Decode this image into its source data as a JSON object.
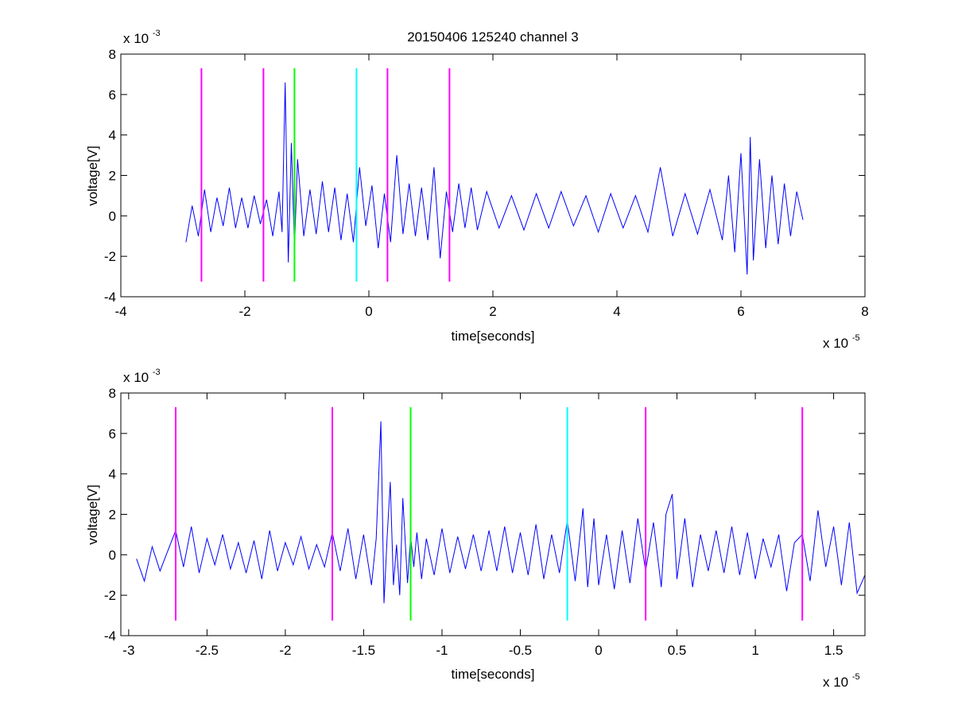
{
  "figure": {
    "title": "20150406 125240 channel 3",
    "background": "#ffffff"
  },
  "chart_data": [
    {
      "type": "line",
      "title": "20150406 125240 channel 3",
      "xlabel": "time[seconds]",
      "ylabel": "voltage[V]",
      "x_exponent_label": "x 10",
      "x_exponent": "-5",
      "y_exponent_label": "x 10",
      "y_exponent": "-3",
      "xlim": [
        -4,
        8
      ],
      "ylim": [
        -4,
        8
      ],
      "xticks": [
        -4,
        -2,
        0,
        2,
        4,
        6,
        8
      ],
      "xtick_labels": [
        "-4",
        "-2",
        "0",
        "2",
        "4",
        "6",
        "8"
      ],
      "yticks": [
        -4,
        -2,
        0,
        2,
        4,
        6,
        8
      ],
      "ytick_labels": [
        "-4",
        "-2",
        "0",
        "2",
        "4",
        "6",
        "8"
      ],
      "grid": false,
      "series": [
        {
          "color": "#0000ff",
          "x": [
            -2.95,
            -2.85,
            -2.75,
            -2.65,
            -2.55,
            -2.45,
            -2.35,
            -2.25,
            -2.15,
            -2.05,
            -1.95,
            -1.85,
            -1.75,
            -1.65,
            -1.55,
            -1.45,
            -1.4,
            -1.35,
            -1.3,
            -1.25,
            -1.2,
            -1.15,
            -1.05,
            -0.95,
            -0.85,
            -0.75,
            -0.65,
            -0.55,
            -0.45,
            -0.35,
            -0.25,
            -0.15,
            -0.05,
            0.05,
            0.15,
            0.25,
            0.35,
            0.45,
            0.55,
            0.65,
            0.75,
            0.85,
            0.95,
            1.05,
            1.15,
            1.25,
            1.35,
            1.45,
            1.55,
            1.65,
            1.75,
            1.9,
            2.1,
            2.3,
            2.5,
            2.7,
            2.9,
            3.1,
            3.3,
            3.5,
            3.7,
            3.9,
            4.1,
            4.3,
            4.5,
            4.7,
            4.9,
            5.1,
            5.3,
            5.5,
            5.7,
            5.8,
            5.9,
            6.0,
            6.1,
            6.15,
            6.2,
            6.3,
            6.4,
            6.5,
            6.6,
            6.7,
            6.8,
            6.9,
            7.0
          ],
          "y": [
            -1.3,
            0.5,
            -1.0,
            1.3,
            -0.8,
            0.9,
            -0.5,
            1.4,
            -0.6,
            0.9,
            -0.6,
            1.0,
            -0.4,
            0.8,
            -1.0,
            1.2,
            -0.8,
            6.6,
            -2.3,
            3.6,
            -1.6,
            2.8,
            -1.0,
            1.3,
            -0.9,
            1.7,
            -0.8,
            1.4,
            -1.2,
            1.1,
            -1.3,
            2.4,
            -0.5,
            1.5,
            -1.6,
            1.1,
            -1.3,
            3.0,
            -0.9,
            1.6,
            -1.0,
            1.4,
            -1.2,
            2.4,
            -2.1,
            1.2,
            -0.8,
            1.6,
            -0.6,
            1.4,
            -0.7,
            1.2,
            -0.6,
            1.0,
            -0.7,
            1.1,
            -0.6,
            1.2,
            -0.5,
            1.0,
            -0.8,
            1.1,
            -0.6,
            1.0,
            -0.8,
            2.4,
            -1.0,
            1.1,
            -0.9,
            1.3,
            -1.2,
            2.0,
            -1.8,
            3.1,
            -2.9,
            3.9,
            -2.2,
            2.8,
            -1.6,
            2.0,
            -1.4,
            1.6,
            -1.0,
            1.2,
            -0.2
          ]
        }
      ],
      "vlines": [
        {
          "x": -2.7,
          "color": "#ff00ff"
        },
        {
          "x": -1.7,
          "color": "#ff00ff"
        },
        {
          "x": -1.2,
          "color": "#00ff00"
        },
        {
          "x": -0.2,
          "color": "#00ffff"
        },
        {
          "x": 0.3,
          "color": "#ff00ff"
        },
        {
          "x": 1.3,
          "color": "#ff00ff"
        }
      ],
      "vline_yrange": [
        -3.25,
        7.3
      ]
    },
    {
      "type": "line",
      "title": "",
      "xlabel": "time[seconds]",
      "ylabel": "voltage[V]",
      "x_exponent_label": "x 10",
      "x_exponent": "-5",
      "y_exponent_label": "x 10",
      "y_exponent": "-3",
      "xlim": [
        -3.05,
        1.7
      ],
      "ylim": [
        -4,
        8
      ],
      "xticks": [
        -3,
        -2.5,
        -2,
        -1.5,
        -1,
        -0.5,
        0,
        0.5,
        1,
        1.5
      ],
      "xtick_labels": [
        "-3",
        "-2.5",
        "-2",
        "-1.5",
        "-1",
        "-0.5",
        "0",
        "0.5",
        "1",
        "1.5"
      ],
      "yticks": [
        -4,
        -2,
        0,
        2,
        4,
        6,
        8
      ],
      "ytick_labels": [
        "-4",
        "-2",
        "0",
        "2",
        "4",
        "6",
        "8"
      ],
      "grid": false,
      "series": [
        {
          "color": "#0000ff",
          "x": [
            -2.95,
            -2.9,
            -2.85,
            -2.8,
            -2.75,
            -2.7,
            -2.65,
            -2.6,
            -2.55,
            -2.5,
            -2.45,
            -2.4,
            -2.35,
            -2.3,
            -2.25,
            -2.2,
            -2.15,
            -2.1,
            -2.05,
            -2.0,
            -1.95,
            -1.9,
            -1.85,
            -1.8,
            -1.75,
            -1.7,
            -1.65,
            -1.6,
            -1.55,
            -1.5,
            -1.45,
            -1.42,
            -1.39,
            -1.37,
            -1.35,
            -1.33,
            -1.31,
            -1.29,
            -1.27,
            -1.25,
            -1.22,
            -1.2,
            -1.18,
            -1.16,
            -1.13,
            -1.1,
            -1.05,
            -1.0,
            -0.95,
            -0.9,
            -0.85,
            -0.8,
            -0.75,
            -0.7,
            -0.65,
            -0.6,
            -0.55,
            -0.5,
            -0.45,
            -0.4,
            -0.35,
            -0.3,
            -0.25,
            -0.2,
            -0.15,
            -0.1,
            -0.07,
            -0.03,
            0.0,
            0.05,
            0.1,
            0.15,
            0.2,
            0.25,
            0.3,
            0.35,
            0.4,
            0.43,
            0.47,
            0.5,
            0.55,
            0.6,
            0.65,
            0.7,
            0.75,
            0.8,
            0.85,
            0.9,
            0.95,
            1.0,
            1.05,
            1.1,
            1.15,
            1.2,
            1.25,
            1.3,
            1.35,
            1.4,
            1.45,
            1.5,
            1.55,
            1.6,
            1.65,
            1.7
          ],
          "y": [
            -0.2,
            -1.3,
            0.4,
            -0.8,
            0.2,
            1.2,
            -0.6,
            1.4,
            -0.9,
            0.8,
            -0.5,
            1.0,
            -0.7,
            0.6,
            -0.9,
            0.7,
            -1.2,
            1.2,
            -0.8,
            0.6,
            -0.5,
            0.9,
            -0.7,
            0.5,
            -0.6,
            1.1,
            -0.8,
            1.3,
            -1.2,
            1.0,
            -1.5,
            0.8,
            6.6,
            -2.4,
            0.9,
            3.6,
            -1.5,
            0.5,
            -2.0,
            2.8,
            -1.4,
            0.9,
            -0.6,
            1.1,
            -1.2,
            0.8,
            -1.0,
            1.3,
            -0.9,
            0.9,
            -0.7,
            1.0,
            -0.8,
            1.2,
            -0.8,
            1.4,
            -0.9,
            1.1,
            -1.0,
            1.5,
            -1.2,
            1.0,
            -0.9,
            1.7,
            -1.3,
            2.3,
            -1.6,
            1.8,
            -1.5,
            1.0,
            -1.7,
            1.2,
            -1.4,
            1.8,
            -0.8,
            1.6,
            -1.6,
            2.0,
            3.0,
            -1.2,
            1.8,
            -1.6,
            1.0,
            -0.8,
            1.2,
            -0.9,
            1.4,
            -1.0,
            1.1,
            -1.2,
            0.8,
            -0.6,
            1.0,
            -1.8,
            0.6,
            1.0,
            -1.3,
            2.2,
            -0.6,
            1.4,
            -1.5,
            1.6,
            -1.9,
            -1.0
          ]
        }
      ],
      "vlines": [
        {
          "x": -2.7,
          "color": "#ff00ff"
        },
        {
          "x": -1.7,
          "color": "#ff00ff"
        },
        {
          "x": -1.2,
          "color": "#00ff00"
        },
        {
          "x": -0.2,
          "color": "#00ffff"
        },
        {
          "x": 0.3,
          "color": "#ff00ff"
        },
        {
          "x": 1.3,
          "color": "#ff00ff"
        }
      ],
      "vline_yrange": [
        -3.25,
        7.3
      ]
    }
  ]
}
